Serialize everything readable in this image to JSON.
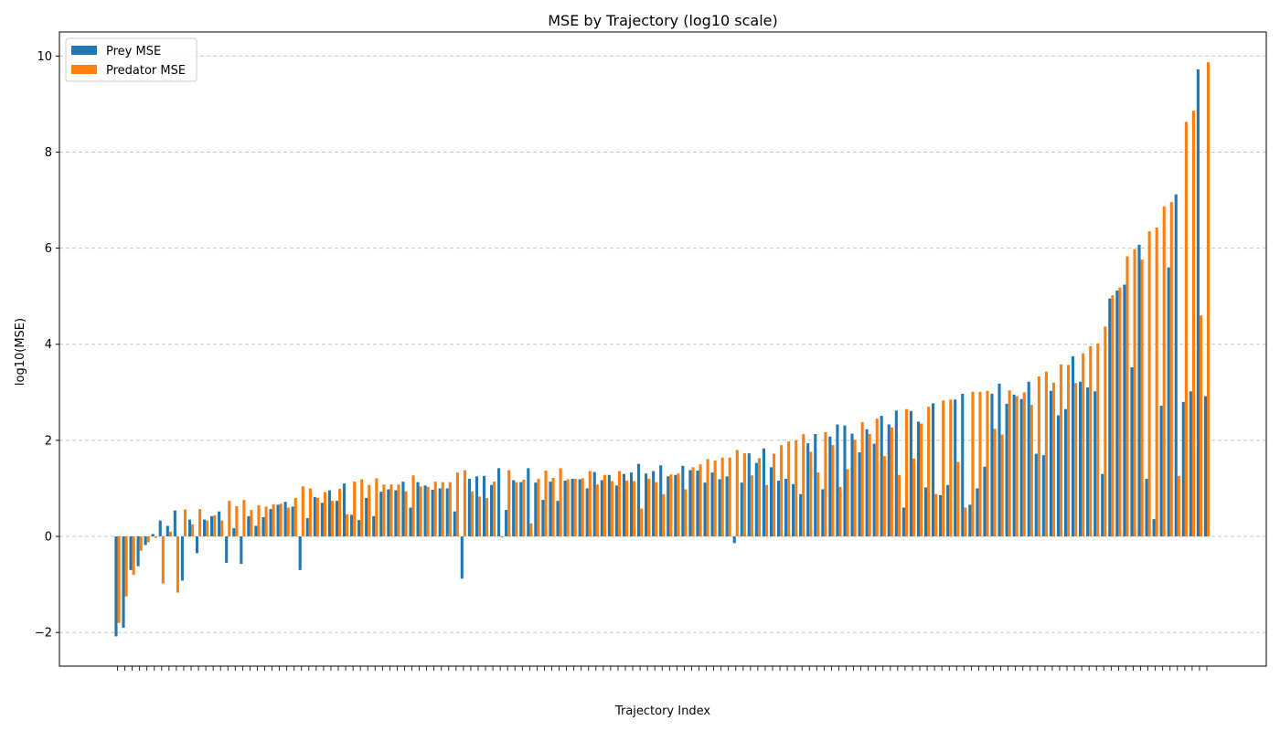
{
  "chart_data": {
    "type": "bar",
    "title": "MSE by Trajectory (log10 scale)",
    "xlabel": "Trajectory Index",
    "ylabel": "log10(MSE)",
    "ylim": [
      -2.7,
      10.5
    ],
    "yticks": [
      -2,
      0,
      2,
      4,
      6,
      8,
      10
    ],
    "grid": "y dashed",
    "legend": "top-left",
    "series": [
      {
        "name": "Prey MSE",
        "color": "#1f77b4",
        "values": [
          -2.08,
          -1.9,
          -0.7,
          -0.62,
          -0.18,
          0.05,
          0.33,
          0.22,
          0.54,
          -0.92,
          0.35,
          -0.35,
          0.35,
          0.42,
          0.52,
          -0.55,
          0.17,
          -0.57,
          0.42,
          0.22,
          0.4,
          0.57,
          0.66,
          0.72,
          0.62,
          -0.7,
          0.38,
          0.82,
          0.7,
          0.96,
          0.74,
          1.1,
          0.45,
          0.34,
          0.8,
          0.42,
          0.93,
          0.98,
          0.96,
          1.14,
          0.6,
          1.13,
          1.06,
          0.97,
          1.0,
          1.0,
          0.52,
          -0.88,
          1.2,
          1.25,
          1.26,
          1.07,
          1.42,
          0.55,
          1.17,
          1.13,
          1.42,
          1.12,
          0.76,
          1.14,
          0.74,
          1.16,
          1.2,
          1.19,
          1.0,
          1.34,
          1.17,
          1.28,
          1.06,
          1.3,
          1.33,
          1.51,
          1.31,
          1.36,
          1.48,
          1.25,
          1.28,
          1.47,
          1.38,
          1.37,
          1.12,
          1.33,
          1.19,
          1.25,
          -0.14,
          1.12,
          1.73,
          1.53,
          1.83,
          1.44,
          1.16,
          1.2,
          1.09,
          0.88,
          1.94,
          2.13,
          0.98,
          2.08,
          2.33,
          2.31,
          2.14,
          1.75,
          2.23,
          1.93,
          2.51,
          2.33,
          2.62,
          0.6,
          2.61,
          2.39,
          1.02,
          2.77,
          0.86,
          1.07,
          2.85,
          2.97,
          0.66,
          1.0,
          1.45,
          2.97,
          3.18,
          2.76,
          2.95,
          2.86,
          3.22,
          1.72,
          1.69,
          3.03,
          2.52,
          2.65,
          3.75,
          3.22,
          3.1,
          3.02,
          1.3,
          4.95,
          5.12,
          5.24,
          3.52,
          6.07,
          1.2,
          0.36,
          2.72,
          5.6,
          7.12,
          2.8,
          3.02,
          9.72,
          2.92
        ]
      },
      {
        "name": "Predator MSE",
        "color": "#ff7f0e",
        "values": [
          -1.8,
          -1.25,
          -0.8,
          -0.3,
          -0.12,
          -0.03,
          -0.98,
          0.1,
          -1.17,
          0.56,
          0.25,
          0.57,
          0.33,
          0.44,
          0.33,
          0.74,
          0.63,
          0.76,
          0.55,
          0.65,
          0.62,
          0.67,
          0.68,
          0.6,
          0.8,
          1.04,
          1.0,
          0.8,
          0.92,
          0.74,
          0.99,
          0.46,
          1.14,
          1.19,
          1.07,
          1.21,
          1.08,
          1.08,
          1.08,
          0.94,
          1.27,
          1.04,
          1.03,
          1.14,
          1.13,
          1.13,
          1.33,
          1.38,
          0.94,
          0.83,
          0.8,
          1.14,
          -0.02,
          1.38,
          1.13,
          1.18,
          0.27,
          1.2,
          1.37,
          1.22,
          1.42,
          1.19,
          1.2,
          1.21,
          1.36,
          1.08,
          1.28,
          1.15,
          1.36,
          1.16,
          1.15,
          0.58,
          1.2,
          1.13,
          0.88,
          1.29,
          1.31,
          0.98,
          1.44,
          1.5,
          1.61,
          1.58,
          1.64,
          1.64,
          1.8,
          1.73,
          1.27,
          1.63,
          1.07,
          1.72,
          1.9,
          1.98,
          2.0,
          2.13,
          1.76,
          1.33,
          2.17,
          1.9,
          1.03,
          1.4,
          2.01,
          2.38,
          2.13,
          2.45,
          1.67,
          2.27,
          1.28,
          2.65,
          1.62,
          2.35,
          2.7,
          0.88,
          2.83,
          2.85,
          1.55,
          0.6,
          3.01,
          3.01,
          3.03,
          2.24,
          2.12,
          3.04,
          2.92,
          3.0,
          2.74,
          3.33,
          3.43,
          3.2,
          3.58,
          3.57,
          3.19,
          3.81,
          3.96,
          4.02,
          4.37,
          5.02,
          5.18,
          5.83,
          5.98,
          5.76,
          6.35,
          6.43,
          6.87,
          6.96,
          1.26,
          8.63,
          8.86,
          4.6,
          9.87
        ]
      }
    ]
  }
}
